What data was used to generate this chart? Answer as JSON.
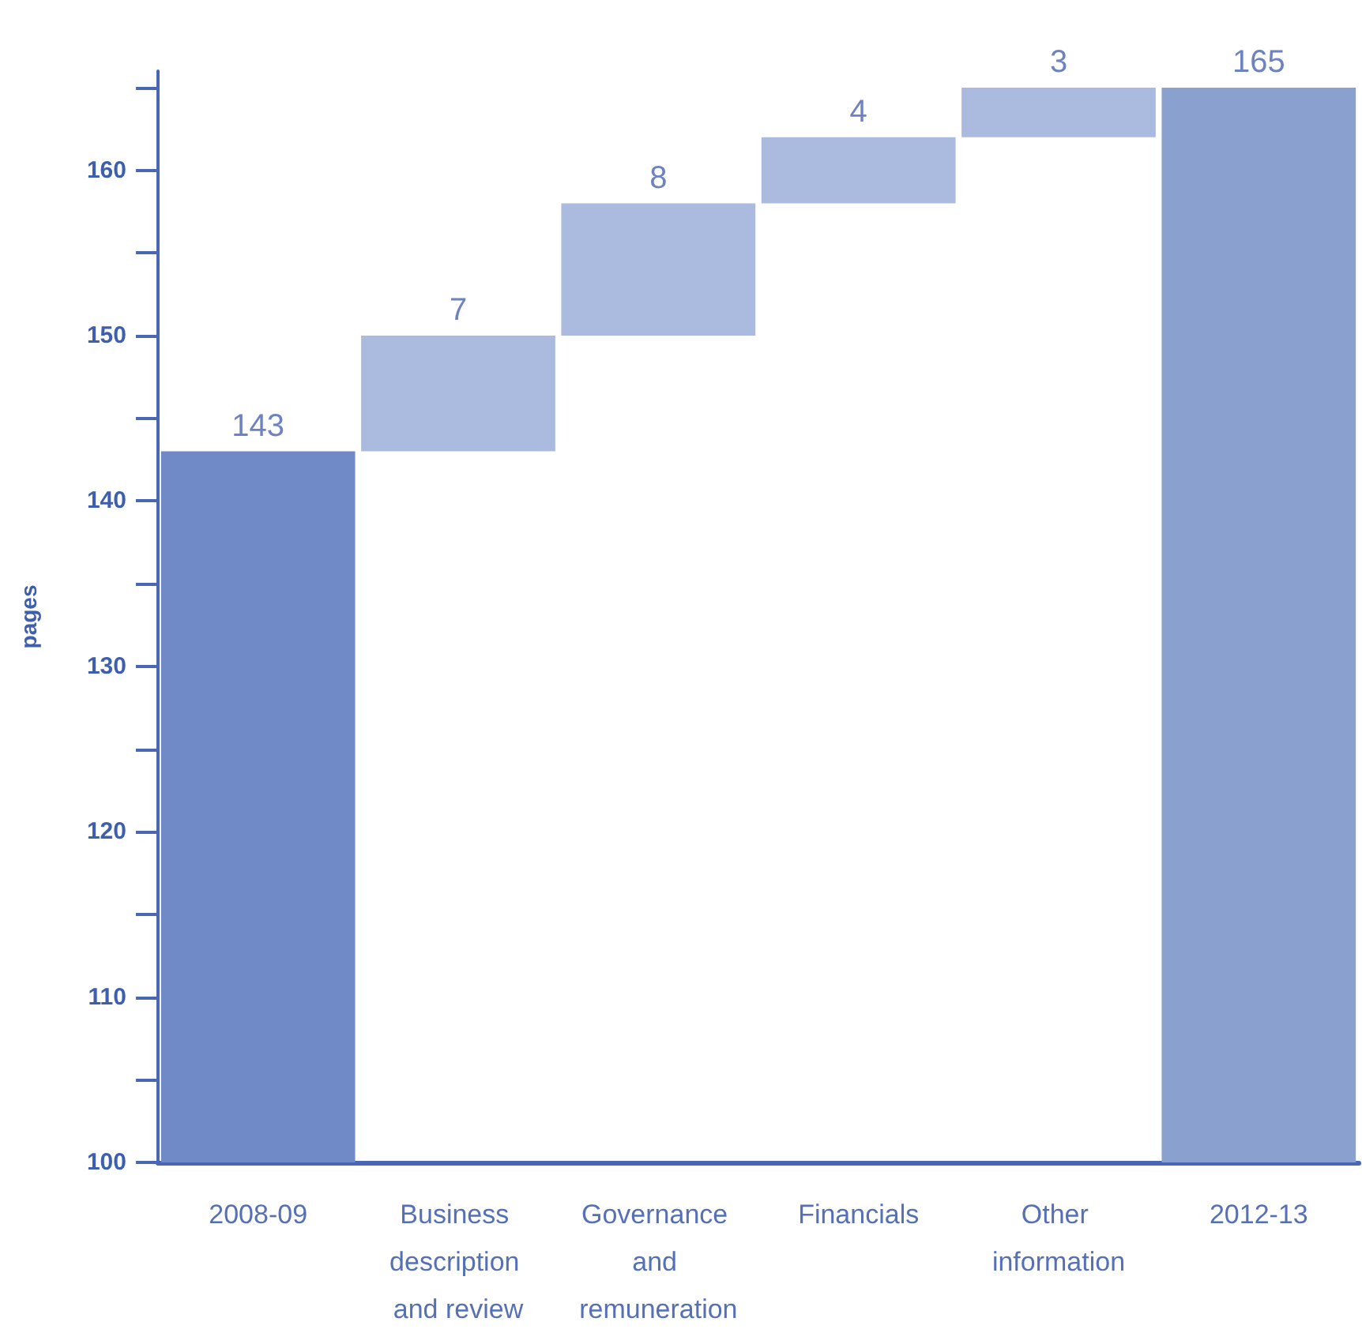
{
  "chart_data": {
    "type": "bar",
    "ylabel": "pages",
    "categories": [
      "2008-09",
      "Business description and review",
      "Governance and remuneration",
      "Financials",
      "Other information",
      "2012-13"
    ],
    "values": [
      143,
      7,
      8,
      4,
      3,
      165
    ],
    "base": [
      null,
      143,
      150,
      158,
      162,
      null
    ],
    "colors": [
      "#6f8ac6",
      "#abbadf",
      "#abbadf",
      "#abbadf",
      "#abbadf",
      "#8aa0cf"
    ],
    "data_labels": true,
    "ylim": [
      100,
      166
    ],
    "yticks": [
      100,
      {
        "value": 105,
        "label": null
      },
      110,
      {
        "value": 115,
        "label": null
      },
      120,
      {
        "value": 125,
        "label": null
      },
      130,
      {
        "value": 135,
        "label": null
      },
      140,
      {
        "value": 145,
        "label": null
      },
      150,
      {
        "value": 155,
        "label": null
      },
      160,
      {
        "value": 165,
        "label": null
      }
    ],
    "grid": false
  }
}
